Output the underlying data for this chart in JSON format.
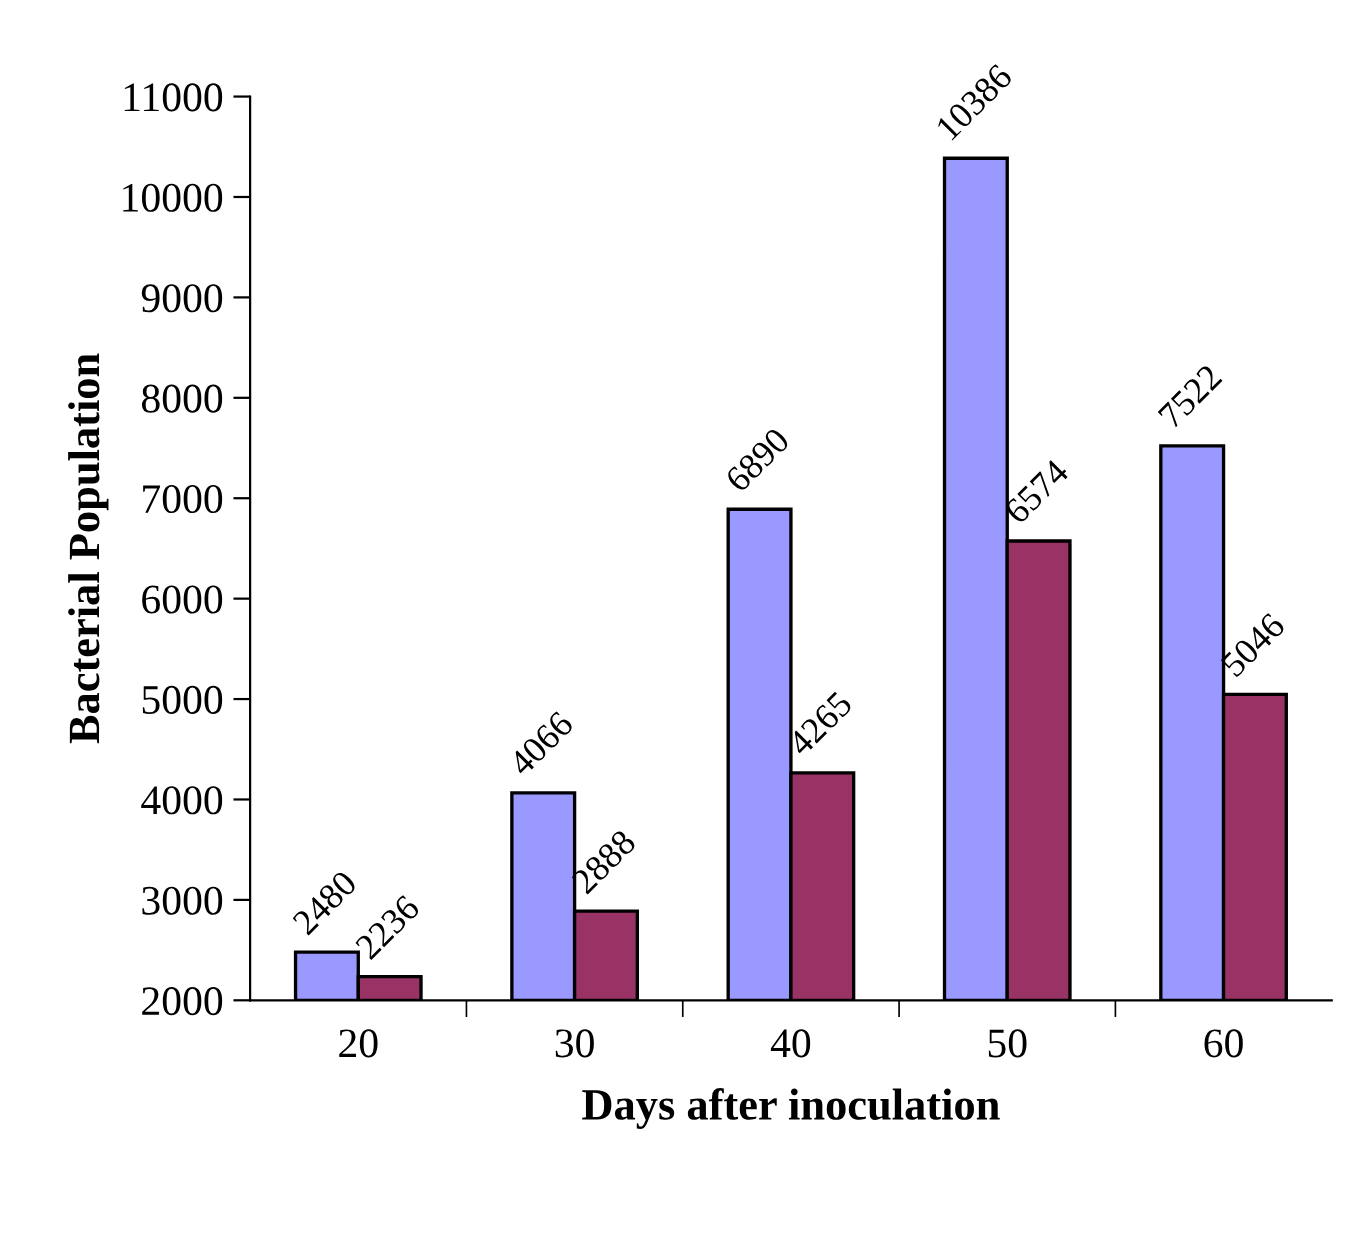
{
  "chart_data": {
    "type": "bar",
    "xlabel": "Days after inoculation",
    "ylabel": "Bacterial Population",
    "categories": [
      "20",
      "30",
      "40",
      "50",
      "60"
    ],
    "series": [
      {
        "color": "#9999ff",
        "values": [
          2480,
          4066,
          6890,
          10386,
          7522
        ]
      },
      {
        "color": "#993366",
        "values": [
          2236,
          2888,
          4265,
          6574,
          5046
        ]
      }
    ],
    "ylim": [
      2000,
      11000
    ],
    "yticks": [
      2000,
      3000,
      4000,
      5000,
      6000,
      7000,
      8000,
      9000,
      10000,
      11000
    ],
    "data_labels": true,
    "grid": false
  }
}
